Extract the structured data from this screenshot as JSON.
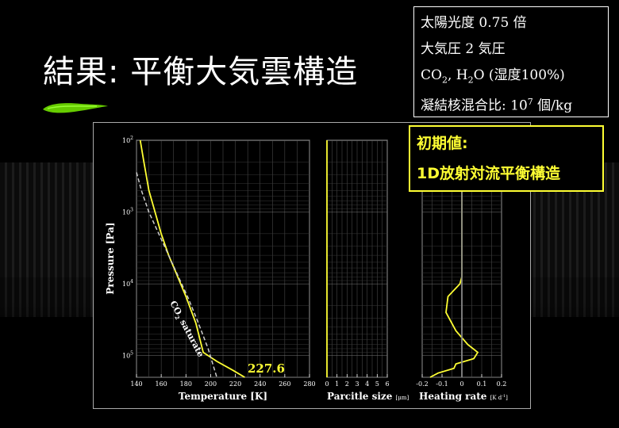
{
  "slide": {
    "title": "結果: 平衡大気雲構造",
    "colors": {
      "accent": "#ffff33",
      "brush": "#66cc00",
      "background": "#000000"
    }
  },
  "info": {
    "line1": "太陽光度  0.75 倍",
    "line2": "大気圧 2 気圧",
    "line3_co": "CO",
    "line3_co_sub": "2",
    "line3_h": ", H",
    "line3_h_sub": "2",
    "line3_rest": "O (湿度100%)",
    "line4_main": "凝結核混合比: 10",
    "line4_sup": "7",
    "line4_unit": " 個/kg"
  },
  "initial_box": {
    "line1": "初期値:",
    "line2": "1D放射対流平衡構造"
  },
  "chart_data": [
    {
      "type": "line",
      "xlabel": "Temperature [K]",
      "ylabel": "Pressure [Pa]",
      "xlim": [
        140,
        280
      ],
      "ylim": [
        100,
        200000
      ],
      "yscale": "log",
      "xticks": [
        "140",
        "160",
        "180",
        "200",
        "220",
        "240",
        "260",
        "280"
      ],
      "yticks": [
        {
          "base": "10",
          "exp": "2",
          "value": 100
        },
        {
          "base": "10",
          "exp": "3",
          "value": 1000
        },
        {
          "base": "10",
          "exp": "4",
          "value": 10000
        },
        {
          "base": "10",
          "exp": "5",
          "value": 100000
        }
      ],
      "grid": true,
      "annotation_value": "227.6",
      "annotation_co": "CO",
      "annotation_sub": "2",
      "annotation_rest": " saturate",
      "series": [
        {
          "style": "solid",
          "color": "#ffff33",
          "x": [
            143,
            146,
            150,
            155,
            160,
            166,
            172,
            180,
            188,
            194,
            205,
            218,
            227.6
          ],
          "y": [
            100,
            200,
            500,
            1000,
            2000,
            4000,
            7000,
            15000,
            35000,
            90000,
            120000,
            160000,
            200000
          ]
        },
        {
          "name": "CO2 saturate",
          "style": "dashed",
          "color": "#cccccc",
          "x": [
            140,
            144,
            150,
            158,
            166,
            174,
            182,
            190,
            198,
            205
          ],
          "y": [
            280,
            500,
            1000,
            2000,
            4000,
            8000,
            16000,
            35000,
            80000,
            200000
          ]
        }
      ]
    },
    {
      "type": "line",
      "xlabel": "Parcitle size",
      "xlabel_unit": "[μm]",
      "xlim": [
        0,
        6
      ],
      "ylim": [
        100,
        200000
      ],
      "yscale": "log",
      "xticks": [
        "0",
        "1",
        "2",
        "3",
        "4",
        "5",
        "6"
      ],
      "grid": true,
      "series": [
        {
          "style": "solid",
          "color": "#ffff33",
          "x": [
            0,
            0,
            0
          ],
          "y": [
            100,
            10000,
            200000
          ]
        }
      ]
    },
    {
      "type": "line",
      "xlabel": "Heating rate",
      "xlabel_unit": "[K d",
      "xlabel_unit_sup": "-1",
      "xlabel_unit_close": "]",
      "xlim": [
        -0.2,
        0.2
      ],
      "ylim": [
        100,
        200000
      ],
      "yscale": "log",
      "xticks": [
        "-0.2",
        "-0.1",
        "0",
        "0.1",
        "0.2"
      ],
      "grid": true,
      "series": [
        {
          "style": "solid",
          "color": "#ffff33",
          "x": [
            0,
            0,
            -0.01,
            -0.07,
            -0.08,
            -0.03,
            0.03,
            0.08,
            0.06,
            -0.03,
            -0.04,
            -0.12,
            -0.16
          ],
          "y": [
            100,
            8000,
            10000,
            15000,
            25000,
            45000,
            70000,
            90000,
            110000,
            130000,
            150000,
            175000,
            200000
          ]
        },
        {
          "style": "solid",
          "color": "#888888",
          "x": [
            0,
            0
          ],
          "y": [
            100,
            200000
          ]
        }
      ]
    }
  ]
}
